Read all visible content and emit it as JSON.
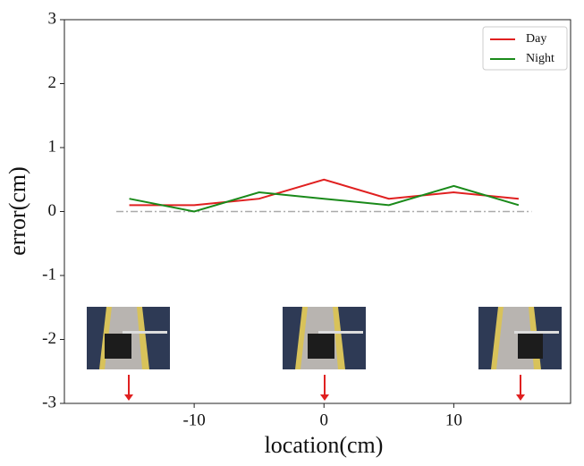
{
  "chart_data": {
    "type": "line",
    "x_label": "location(cm)",
    "y_label": "error(cm)",
    "x": [
      -15,
      -10,
      -5,
      0,
      5,
      10,
      15
    ],
    "series": [
      {
        "name": "Day",
        "color": "#e02020",
        "values": [
          0.1,
          0.1,
          0.2,
          0.5,
          0.2,
          0.3,
          0.2
        ]
      },
      {
        "name": "Night",
        "color": "#1a8a1a",
        "values": [
          0.2,
          0.0,
          0.3,
          0.2,
          0.1,
          0.4,
          0.1
        ]
      }
    ],
    "reference_line": {
      "x": [
        -16,
        16
      ],
      "values": [
        0,
        0
      ],
      "color": "#aaaaaa"
    },
    "xlim": [
      -20,
      19
    ],
    "ylim": [
      -3,
      3
    ],
    "xticks": [
      -10,
      0,
      10
    ],
    "yticks": [
      -3,
      -2,
      -1,
      0,
      1,
      2,
      3
    ],
    "legend": "upper right",
    "grid": false
  }
}
